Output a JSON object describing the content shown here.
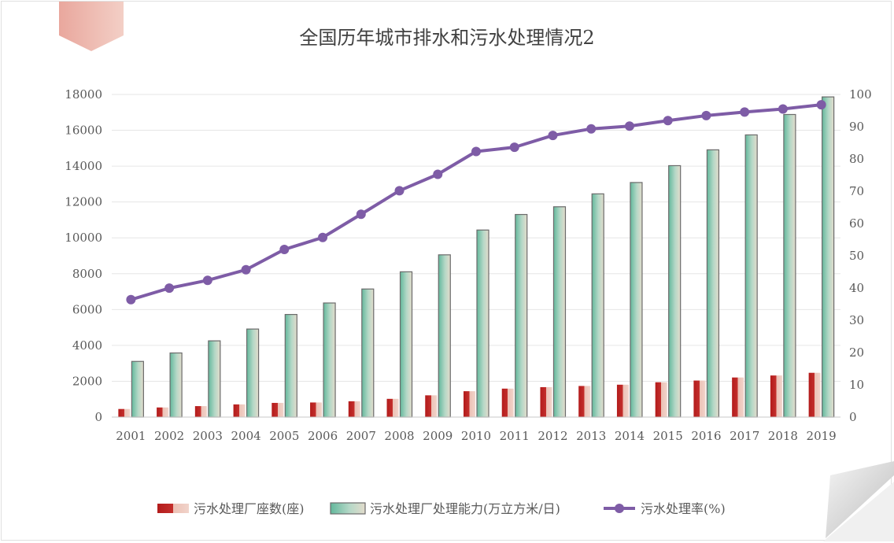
{
  "chart_data": {
    "type": "bar",
    "title": "全国历年城市排水和污水处理情况2",
    "categories": [
      "2001",
      "2002",
      "2003",
      "2004",
      "2005",
      "2006",
      "2007",
      "2008",
      "2009",
      "2010",
      "2011",
      "2012",
      "2013",
      "2014",
      "2015",
      "2016",
      "2017",
      "2018",
      "2019"
    ],
    "series": [
      {
        "name": "污水处理厂座数(座)",
        "type": "bar",
        "axis": "left",
        "color": "#b31b1b",
        "values": [
          452,
          537,
          612,
          708,
          792,
          815,
          883,
          1018,
          1214,
          1444,
          1588,
          1670,
          1736,
          1807,
          1944,
          2039,
          2209,
          2321,
          2471
        ]
      },
      {
        "name": "污水处理厂处理能力(万立方米/日)",
        "type": "bar",
        "axis": "left",
        "color": "#63b89c",
        "values": [
          3106,
          3578,
          4254,
          4912,
          5725,
          6366,
          7146,
          8106,
          9052,
          10436,
          11303,
          11733,
          12454,
          13087,
          14028,
          14910,
          15743,
          16881,
          17863
        ]
      },
      {
        "name": "污水处理率(%)",
        "type": "line",
        "axis": "right",
        "color": "#7e5ca6",
        "values": [
          36.4,
          39.97,
          42.39,
          45.67,
          51.95,
          55.67,
          62.87,
          70.16,
          75.25,
          82.31,
          83.63,
          87.3,
          89.34,
          90.18,
          91.9,
          93.44,
          94.54,
          95.49,
          96.81
        ]
      }
    ],
    "y_left": {
      "min": 0,
      "max": 18000,
      "ticks": [
        "0",
        "2000",
        "4000",
        "6000",
        "8000",
        "10000",
        "12000",
        "14000",
        "16000",
        "18000"
      ]
    },
    "y_right": {
      "min": 0,
      "max": 100,
      "ticks": [
        "0",
        "10",
        "20",
        "30",
        "40",
        "50",
        "60",
        "70",
        "80",
        "90",
        "100"
      ]
    },
    "grid": true,
    "legend_position": "bottom"
  }
}
